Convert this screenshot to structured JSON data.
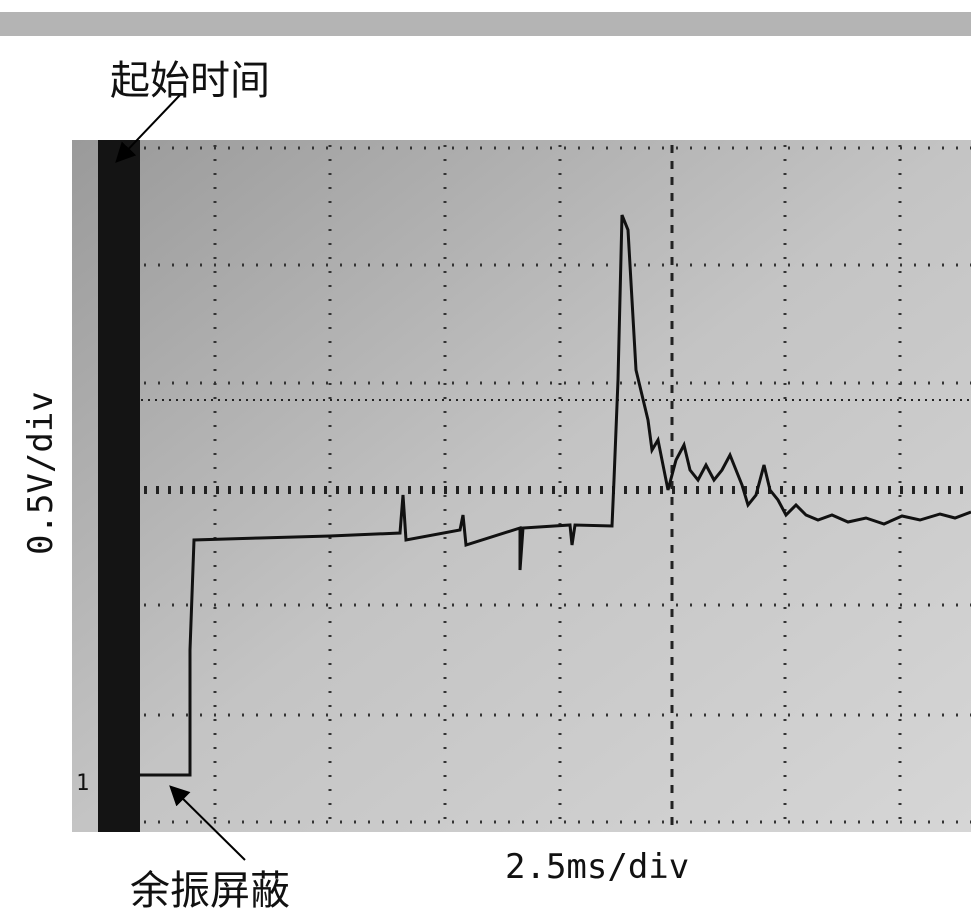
{
  "labels": {
    "start_time": "起始时间",
    "ringing_blanking": "余振屏蔽",
    "vertical_scale": "0.5V/div",
    "time_scale": "2.5ms/div",
    "channel_marker": "1"
  }
}
